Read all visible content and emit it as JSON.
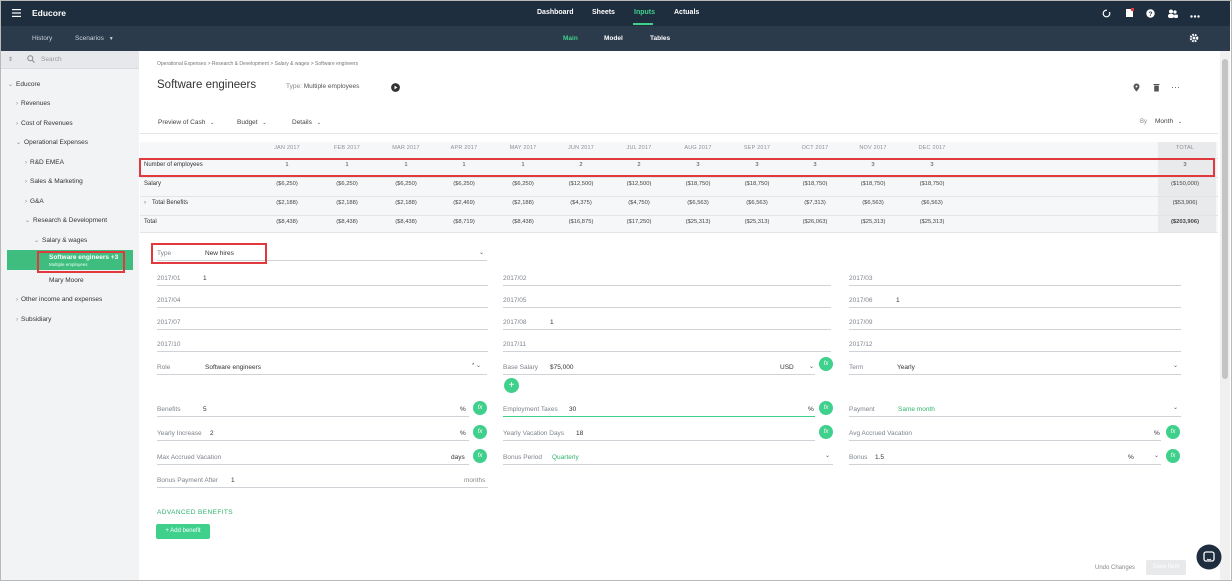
{
  "app": {
    "title": "Educore"
  },
  "topnav": {
    "items": [
      "Dashboard",
      "Sheets",
      "Inputs",
      "Actuals"
    ],
    "active": "Inputs"
  },
  "subnav": {
    "history": "History",
    "scenarios": "Scenarios",
    "tabs": [
      "Main",
      "Model",
      "Tables"
    ],
    "active": "Main"
  },
  "sidebar": {
    "search_placeholder": "Search",
    "items": {
      "root": "Educore",
      "revenues": "Revenues",
      "cost_of_revenues": "Cost of Revenues",
      "operational_expenses": "Operational Expenses",
      "rd_emea": "R&D EMEA",
      "sales_marketing": "Sales & Marketing",
      "ga": "G&A",
      "research_development": "Research & Development",
      "salary_wages": "Salary & wages",
      "software_engineers": "Software engineers +3",
      "software_engineers_sub": "Multiple employees",
      "mary_moore": "Mary Moore",
      "other_income": "Other income and expenses",
      "subsidiary": "Subsidiary"
    }
  },
  "breadcrumb": "Operational Expenses > Research & Development > Salary & wages > Software engineers",
  "page": {
    "title": "Software engineers",
    "type_label": "Type:",
    "type_value": "Multiple employees"
  },
  "toolbar": {
    "preview": "Preview of Cash",
    "budget": "Budget",
    "details": "Details",
    "by_label": "By",
    "by_value": "Month"
  },
  "table": {
    "months": [
      "JAN 2017",
      "FEB 2017",
      "MAR 2017",
      "APR 2017",
      "MAY 2017",
      "JUN 2017",
      "JUL 2017",
      "AUG 2017",
      "SEP 2017",
      "OCT 2017",
      "NOV 2017",
      "DEC 2017"
    ],
    "total_header": "TOTAL",
    "rows": [
      {
        "label": "Number of employees",
        "values": [
          "1",
          "1",
          "1",
          "1",
          "1",
          "2",
          "2",
          "3",
          "3",
          "3",
          "3",
          "3"
        ],
        "total": "3"
      },
      {
        "label": "Salary",
        "values": [
          "($6,250)",
          "($6,250)",
          "($6,250)",
          "($6,250)",
          "($6,250)",
          "($12,500)",
          "($12,500)",
          "($18,750)",
          "($18,750)",
          "($18,750)",
          "($18,750)",
          "($18,750)"
        ],
        "total": "($150,000)"
      },
      {
        "label": "Total Benefits",
        "values": [
          "($2,188)",
          "($2,188)",
          "($2,188)",
          "($2,469)",
          "($2,188)",
          "($4,375)",
          "($4,750)",
          "($6,563)",
          "($6,563)",
          "($7,313)",
          "($6,563)",
          "($6,563)"
        ],
        "total": "($53,906)"
      },
      {
        "label": "Total",
        "values": [
          "($8,438)",
          "($8,438)",
          "($8,438)",
          "($8,719)",
          "($8,438)",
          "($16,875)",
          "($17,250)",
          "($25,313)",
          "($25,313)",
          "($26,063)",
          "($25,313)",
          "($25,313)"
        ],
        "total": "($203,906)"
      }
    ]
  },
  "form": {
    "type_label": "Type",
    "type_value": "New hires",
    "months": [
      {
        "label": "2017/01",
        "value": "1"
      },
      {
        "label": "2017/02",
        "value": ""
      },
      {
        "label": "2017/03",
        "value": ""
      },
      {
        "label": "2017/04",
        "value": ""
      },
      {
        "label": "2017/05",
        "value": ""
      },
      {
        "label": "2017/06",
        "value": "1"
      },
      {
        "label": "2017/07",
        "value": ""
      },
      {
        "label": "2017/08",
        "value": "1"
      },
      {
        "label": "2017/09",
        "value": ""
      },
      {
        "label": "2017/10",
        "value": ""
      },
      {
        "label": "2017/11",
        "value": ""
      },
      {
        "label": "2017/12",
        "value": ""
      }
    ],
    "role_label": "Role",
    "role_value": "Software engineers",
    "base_salary_label": "Base Salary",
    "base_salary_value": "$75,000",
    "currency": "USD",
    "term_label": "Term",
    "term_value": "Yearly",
    "benefits_label": "Benefits",
    "benefits_value": "5",
    "benefits_unit": "%",
    "employment_taxes_label": "Employment Taxes",
    "employment_taxes_value": "30",
    "employment_taxes_unit": "%",
    "payment_label": "Payment",
    "payment_value": "Same month",
    "yearly_increase_label": "Yearly Increase",
    "yearly_increase_value": "2",
    "yearly_increase_unit": "%",
    "yearly_vacation_label": "Yearly Vacation Days",
    "yearly_vacation_value": "18",
    "avg_accrued_label": "Avg Accrued Vacation",
    "avg_accrued_unit": "%",
    "max_accrued_label": "Max Accrued Vacation",
    "max_accrued_unit": "days",
    "bonus_period_label": "Bonus Period",
    "bonus_period_value": "Quarterly",
    "bonus_label": "Bonus",
    "bonus_value": "1.5",
    "bonus_unit": "%",
    "bonus_payment_label": "Bonus Payment After",
    "bonus_payment_value": "1",
    "bonus_payment_unit": "months",
    "advanced_benefits": "ADVANCED BENEFITS",
    "add_benefit": "+ Add benefit",
    "fx": "fx"
  },
  "footer": {
    "undo": "Undo Changes",
    "save": "Save Item"
  },
  "icons": {
    "menu": "menu-icon",
    "sync": "sync-icon",
    "doc": "doc-icon",
    "help": "help-icon",
    "users": "users-icon",
    "more": "more-icon",
    "gear": "gear-icon",
    "pin": "pin-icon",
    "trash": "trash-icon",
    "play": "play-icon",
    "chat": "chat-icon"
  },
  "colors": {
    "topbar": "#1e2e3e",
    "subbar": "#2b3b4c",
    "accent": "#3fd08c",
    "highlight": "#e0393e"
  }
}
